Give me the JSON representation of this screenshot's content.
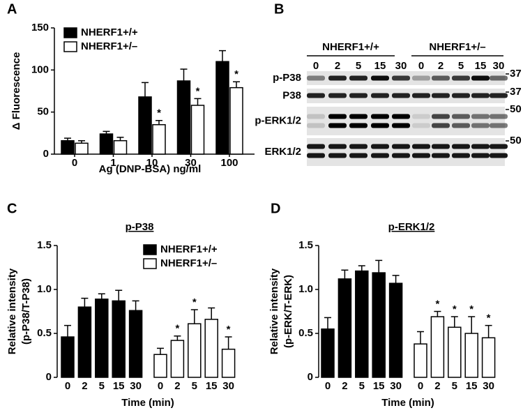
{
  "blot": {
    "panel": "B",
    "groups": [
      "NHERF1+/+",
      "NHERF1+/–"
    ],
    "lanes": [
      "0",
      "2",
      "5",
      "15",
      "30",
      "0",
      "2",
      "5",
      "15",
      "30"
    ],
    "rows": [
      "p-P38",
      "P38",
      "p-ERK1/2",
      "ERK1/2"
    ],
    "markers": [
      "37",
      "37",
      "50",
      "50"
    ]
  },
  "chart_data": [
    {
      "type": "bar",
      "panel": "A",
      "ylabel": "Δ Fluorescence",
      "xlabel": "Ag (DNP-BSA) ng/ml",
      "categories": [
        "0",
        "1",
        "10",
        "30",
        "100"
      ],
      "series": [
        {
          "name": "NHERF1+/+",
          "color": "#000000",
          "values": [
            16,
            24,
            68,
            87,
            110
          ],
          "errors": [
            3,
            3,
            17,
            14,
            13
          ]
        },
        {
          "name": "NHERF1+/–",
          "color": "#ffffff",
          "values": [
            13,
            16,
            35,
            58,
            79
          ],
          "errors": [
            3,
            4,
            5,
            8,
            7
          ],
          "markers": [
            null,
            null,
            "*",
            "*",
            "*"
          ]
        }
      ],
      "ylim": [
        0,
        150
      ],
      "yticks": [
        0,
        50,
        100,
        150
      ],
      "legend": "upper left"
    },
    {
      "type": "bar",
      "panel": "C",
      "title": "p-P38",
      "ylabel": [
        "Relative intensity",
        "(p-P38/T-P38)"
      ],
      "xlabel": "Time (min)",
      "categories": [
        "0",
        "2",
        "5",
        "15",
        "30",
        "0",
        "2",
        "5",
        "15",
        "30"
      ],
      "series": [
        {
          "name": "NHERF1+/+",
          "color": "#000000",
          "values": [
            0.46,
            0.8,
            0.89,
            0.87,
            0.76,
            null,
            null,
            null,
            null,
            null
          ],
          "errors": [
            0.13,
            0.1,
            0.06,
            0.12,
            0.11,
            null,
            null,
            null,
            null,
            null
          ]
        },
        {
          "name": "NHERF1+/–",
          "color": "#ffffff",
          "values": [
            null,
            null,
            null,
            null,
            null,
            0.26,
            0.42,
            0.61,
            0.66,
            0.32
          ],
          "errors": [
            null,
            null,
            null,
            null,
            null,
            0.07,
            0.05,
            0.16,
            0.13,
            0.14
          ],
          "markers": [
            null,
            null,
            null,
            null,
            null,
            null,
            "*",
            "*",
            null,
            "*"
          ]
        }
      ],
      "ylim": [
        0,
        1.5
      ],
      "yticks": [
        0,
        0.5,
        {
          "value": 1,
          "label": "1.0"
        },
        1.5
      ],
      "legend": "upper right"
    },
    {
      "type": "bar",
      "panel": "D",
      "title": "p-ERK1/2",
      "ylabel": [
        "Relative intensity",
        "(p-ERK/T-ERK)"
      ],
      "xlabel": "Time (min)",
      "categories": [
        "0",
        "2",
        "5",
        "15",
        "30",
        "0",
        "2",
        "5",
        "15",
        "30"
      ],
      "series": [
        {
          "name": "NHERF1+/+",
          "color": "#000000",
          "values": [
            0.55,
            1.12,
            1.21,
            1.19,
            1.07,
            null,
            null,
            null,
            null,
            null
          ],
          "errors": [
            0.13,
            0.1,
            0.06,
            0.14,
            0.09,
            null,
            null,
            null,
            null,
            null
          ]
        },
        {
          "name": "NHERF1+/–",
          "color": "#ffffff",
          "values": [
            null,
            null,
            null,
            null,
            null,
            0.38,
            0.69,
            0.57,
            0.5,
            0.45
          ],
          "errors": [
            null,
            null,
            null,
            null,
            null,
            0.14,
            0.06,
            0.12,
            0.19,
            0.14
          ],
          "markers": [
            null,
            null,
            null,
            null,
            null,
            null,
            "*",
            "*",
            "*",
            "*"
          ]
        }
      ],
      "ylim": [
        0,
        1.5
      ],
      "yticks": [
        0,
        0.5,
        {
          "value": 1,
          "label": "1.0"
        },
        1.5
      ]
    }
  ]
}
